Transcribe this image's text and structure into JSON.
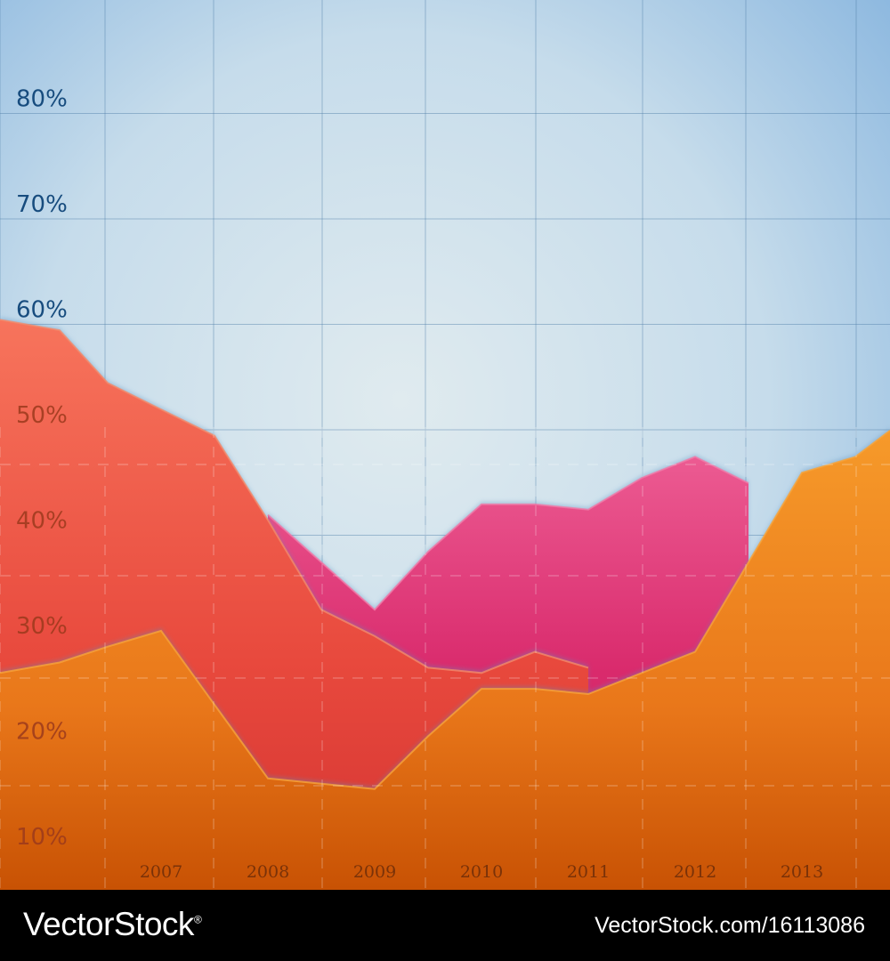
{
  "chart_data": {
    "type": "area",
    "x": [
      2005.7,
      2006.05,
      2006.5,
      2007.0,
      2007.5,
      2008.0,
      2008.5,
      2009.0,
      2009.5,
      2010.0,
      2010.5,
      2011.0,
      2011.5,
      2012.0,
      2012.5,
      2013.0,
      2013.5,
      2013.8
    ],
    "x_ticks": [
      "2007",
      "2008",
      "2009",
      "2010",
      "2011",
      "2012",
      "2013"
    ],
    "y_ticks": [
      "10%",
      "20%",
      "30%",
      "40%",
      "50%",
      "60%",
      "70%",
      "80%"
    ],
    "ylim": [
      3,
      88
    ],
    "grid": true,
    "series": [
      {
        "color": "#e8386f",
        "values": [
          null,
          null,
          null,
          null,
          null,
          40.5,
          36,
          31.5,
          37,
          41.5,
          41.5,
          41,
          44,
          46,
          43.5,
          null,
          null,
          null
        ]
      },
      {
        "color": "#f0604a",
        "values": [
          59,
          58,
          53,
          50.5,
          48,
          40,
          31.5,
          29,
          26,
          25.5,
          27.5,
          26,
          null,
          null,
          null,
          null,
          null,
          null
        ]
      },
      {
        "color": "#f28a1c",
        "values": [
          25.5,
          26.5,
          28,
          29.5,
          22.5,
          15.5,
          15,
          14.5,
          19.5,
          24,
          24,
          23.5,
          25.5,
          27.5,
          36,
          44.5,
          46,
          48.5
        ]
      }
    ]
  },
  "colors": {
    "background_top": "#a9cbe6",
    "background_center": "#dde9ef",
    "grid": "#4f7ea8",
    "tick_y_upper": "#174c7e",
    "tick_y_lower": "#9b3a1c",
    "tick_x": "#7a3208"
  },
  "watermark": {
    "brand": "VectorStock",
    "registered": "®",
    "id": "VectorStock.com/16113086"
  }
}
